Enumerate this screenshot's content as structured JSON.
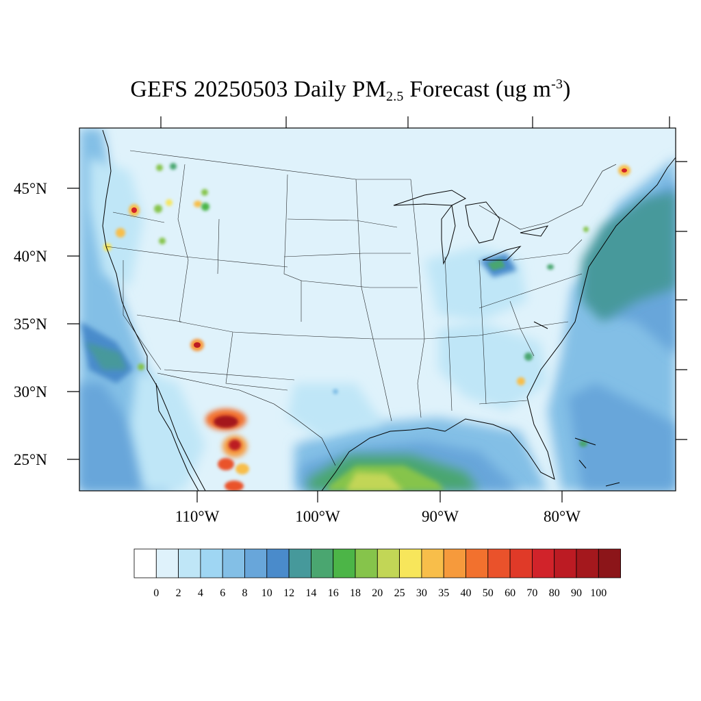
{
  "title": {
    "prefix": "GEFS 20250503 Daily PM",
    "sub": "2.5",
    "mid": " Forecast (ug m",
    "sup": "-3",
    "suffix": ")"
  },
  "axes": {
    "lat_labels": [
      "45°N",
      "40°N",
      "35°N",
      "30°N",
      "25°N"
    ],
    "lon_labels": [
      "110°W",
      "100°W",
      "90°W",
      "80°W"
    ]
  },
  "colorbar": {
    "labels": [
      "0",
      "2",
      "4",
      "6",
      "8",
      "10",
      "12",
      "14",
      "16",
      "18",
      "20",
      "25",
      "30",
      "35",
      "40",
      "50",
      "60",
      "70",
      "80",
      "90",
      "100"
    ],
    "colors": [
      "#ffffff",
      "#dff2fb",
      "#bfe6f7",
      "#9fd6f3",
      "#83bfe6",
      "#68a6da",
      "#4a8bcb",
      "#46999b",
      "#4aa670",
      "#4cb547",
      "#86c44b",
      "#c2d656",
      "#f7e65b",
      "#f8be4a",
      "#f69a3c",
      "#f2712e",
      "#ea522b",
      "#e03a28",
      "#d1232a",
      "#bc1b23",
      "#a4181d",
      "#8c1519"
    ]
  },
  "colors": {
    "background_land": "#dff2fb",
    "ocean_far": "#5f9ed6",
    "coast_band": "#4a9aa0",
    "boundary": "#000000"
  }
}
